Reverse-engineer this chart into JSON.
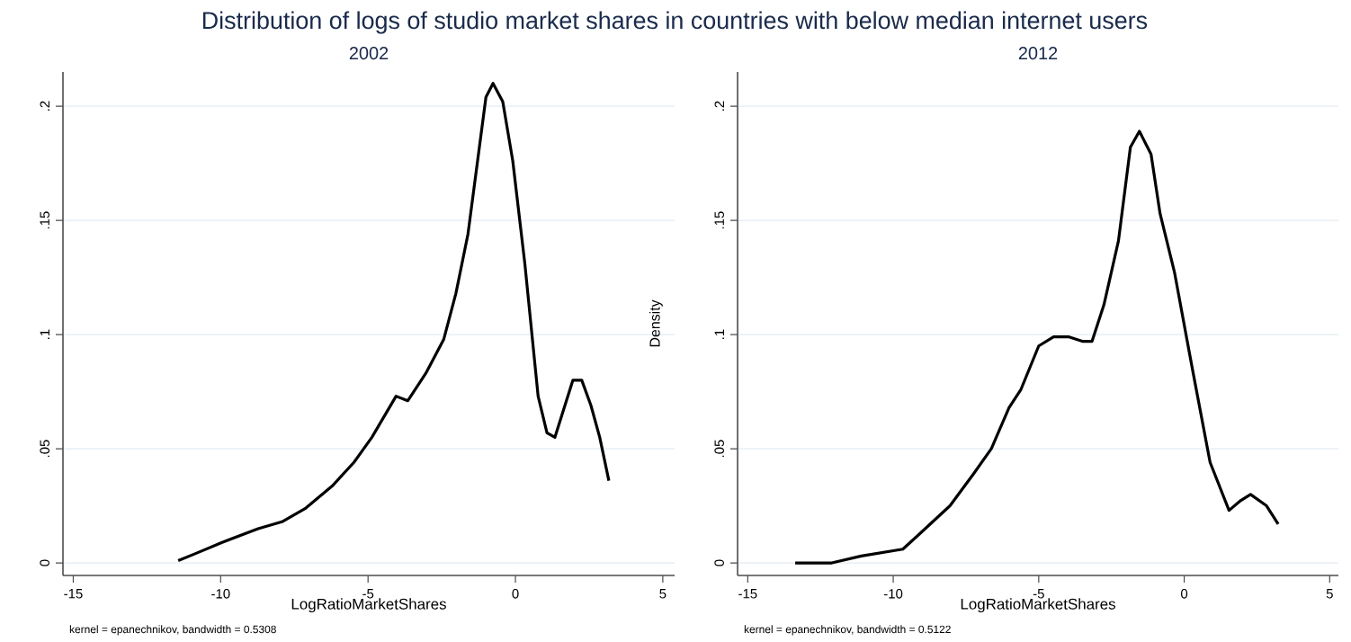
{
  "chart_data": [
    {
      "type": "line",
      "title": "Distribution of logs of studio market shares in countries with below median internet users",
      "subtitle": "2002",
      "xlabel": "LogRatioMarketShares",
      "annotations": [
        "kernel = epanechnikov, bandwidth = 0.5308"
      ],
      "grid": "y",
      "xlim": [
        -15.35,
        5.4
      ],
      "ylim": [
        -0.0055,
        0.215
      ],
      "xticks": [
        -15,
        -10,
        -5,
        0,
        5
      ],
      "yticks": [
        0,
        {
          "value": 0.05,
          "label": ".05"
        },
        {
          "value": 0.1,
          "label": ".1"
        },
        {
          "value": 0.15,
          "label": ".15"
        },
        {
          "value": 0.2,
          "label": ".2"
        }
      ],
      "series": [
        {
          "color": "#000000",
          "x": [
            -11.44,
            -10.87,
            -9.95,
            -8.73,
            -7.92,
            -7.11,
            -6.19,
            -5.48,
            -4.87,
            -4.05,
            -3.65,
            -3.04,
            -2.43,
            -2.02,
            -1.61,
            -1.0,
            -0.76,
            -0.43,
            -0.09,
            0.32,
            0.77,
            1.07,
            1.34,
            1.95,
            2.25,
            2.56,
            2.86,
            3.17
          ],
          "values": [
            0.001,
            0.004,
            0.009,
            0.015,
            0.018,
            0.024,
            0.034,
            0.044,
            0.055,
            0.073,
            0.071,
            0.083,
            0.098,
            0.118,
            0.144,
            0.204,
            0.21,
            0.202,
            0.176,
            0.131,
            0.073,
            0.057,
            0.055,
            0.08,
            0.08,
            0.069,
            0.055,
            0.036
          ]
        }
      ]
    },
    {
      "type": "line",
      "subtitle": "2012",
      "xlabel": "LogRatioMarketShares",
      "ylabel": "Density",
      "annotations": [
        "kernel = epanechnikov, bandwidth = 0.5122"
      ],
      "grid": "y",
      "xlim": [
        -15.35,
        5.3
      ],
      "ylim": [
        -0.0055,
        0.215
      ],
      "xticks": [
        -15,
        -10,
        -5,
        0,
        5
      ],
      "yticks": [
        0,
        {
          "value": 0.05,
          "label": ".05"
        },
        {
          "value": 0.1,
          "label": ".1"
        },
        {
          "value": 0.15,
          "label": ".15"
        },
        {
          "value": 0.2,
          "label": ".2"
        }
      ],
      "series": [
        {
          "color": "#000000",
          "x": [
            -13.37,
            -12.11,
            -11.1,
            -9.67,
            -9.07,
            -8.05,
            -7.24,
            -6.63,
            -6.02,
            -5.61,
            -5.0,
            -4.49,
            -3.98,
            -3.48,
            -3.17,
            -2.76,
            -2.26,
            -1.85,
            -1.54,
            -1.14,
            -0.83,
            -0.33,
            0.28,
            0.89,
            1.54,
            1.91,
            2.28,
            2.83,
            3.23
          ],
          "values": [
            0.0,
            0.0,
            0.003,
            0.006,
            0.013,
            0.025,
            0.039,
            0.05,
            0.068,
            0.076,
            0.095,
            0.099,
            0.099,
            0.097,
            0.097,
            0.113,
            0.141,
            0.182,
            0.189,
            0.179,
            0.153,
            0.127,
            0.085,
            0.044,
            0.023,
            0.027,
            0.03,
            0.025,
            0.017
          ]
        }
      ]
    }
  ]
}
